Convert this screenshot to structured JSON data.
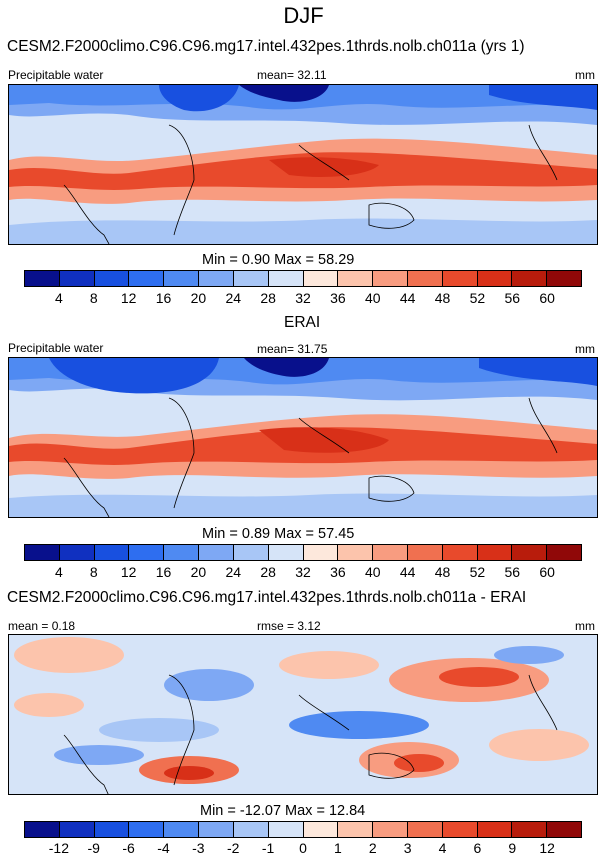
{
  "figure": {
    "title": "DJF",
    "palette": [
      "#08108c",
      "#1030c0",
      "#1850e0",
      "#2e6ef0",
      "#4f8af2",
      "#7ea8f4",
      "#a8c6f6",
      "#d6e4f8",
      "#fde8dc",
      "#fcc4ac",
      "#f89c80",
      "#f07050",
      "#e84a2c",
      "#d83018",
      "#b81c0c",
      "#900808"
    ]
  },
  "chart_data": [
    {
      "type": "heatmap",
      "title": "CESM2.F2000climo.C96.C96.mg17.intel.432pes.1thrds.nolb.ch011a (yrs 1)",
      "left_label": "Precipitable water",
      "center_label": "mean=  32.11",
      "units": "mm",
      "min_max": "Min =   0.90 Max =  58.29",
      "colorbar_ticks": [
        "4",
        "8",
        "12",
        "16",
        "20",
        "24",
        "28",
        "32",
        "36",
        "40",
        "44",
        "48",
        "52",
        "56",
        "60"
      ],
      "mean": 32.11,
      "min": 0.9,
      "max": 58.29
    },
    {
      "type": "heatmap",
      "title": "ERAI",
      "left_label": "Precipitable water",
      "center_label": "mean=  31.75",
      "units": "mm",
      "min_max": "Min =   0.89 Max =  57.45",
      "colorbar_ticks": [
        "4",
        "8",
        "12",
        "16",
        "20",
        "24",
        "28",
        "32",
        "36",
        "40",
        "44",
        "48",
        "52",
        "56",
        "60"
      ],
      "mean": 31.75,
      "min": 0.89,
      "max": 57.45
    },
    {
      "type": "heatmap",
      "title": "CESM2.F2000climo.C96.C96.mg17.intel.432pes.1thrds.nolb.ch011a - ERAI",
      "left_label": "mean =  0.18",
      "center_label": "rmse =  3.12",
      "units": "mm",
      "min_max": "Min = -12.07 Max =  12.84",
      "colorbar_ticks": [
        "-12",
        "-9",
        "-6",
        "-4",
        "-3",
        "-2",
        "-1",
        "0",
        "1",
        "2",
        "3",
        "4",
        "6",
        "9",
        "12"
      ],
      "mean": 0.18,
      "rmse": 3.12,
      "min": -12.07,
      "max": 12.84
    }
  ]
}
